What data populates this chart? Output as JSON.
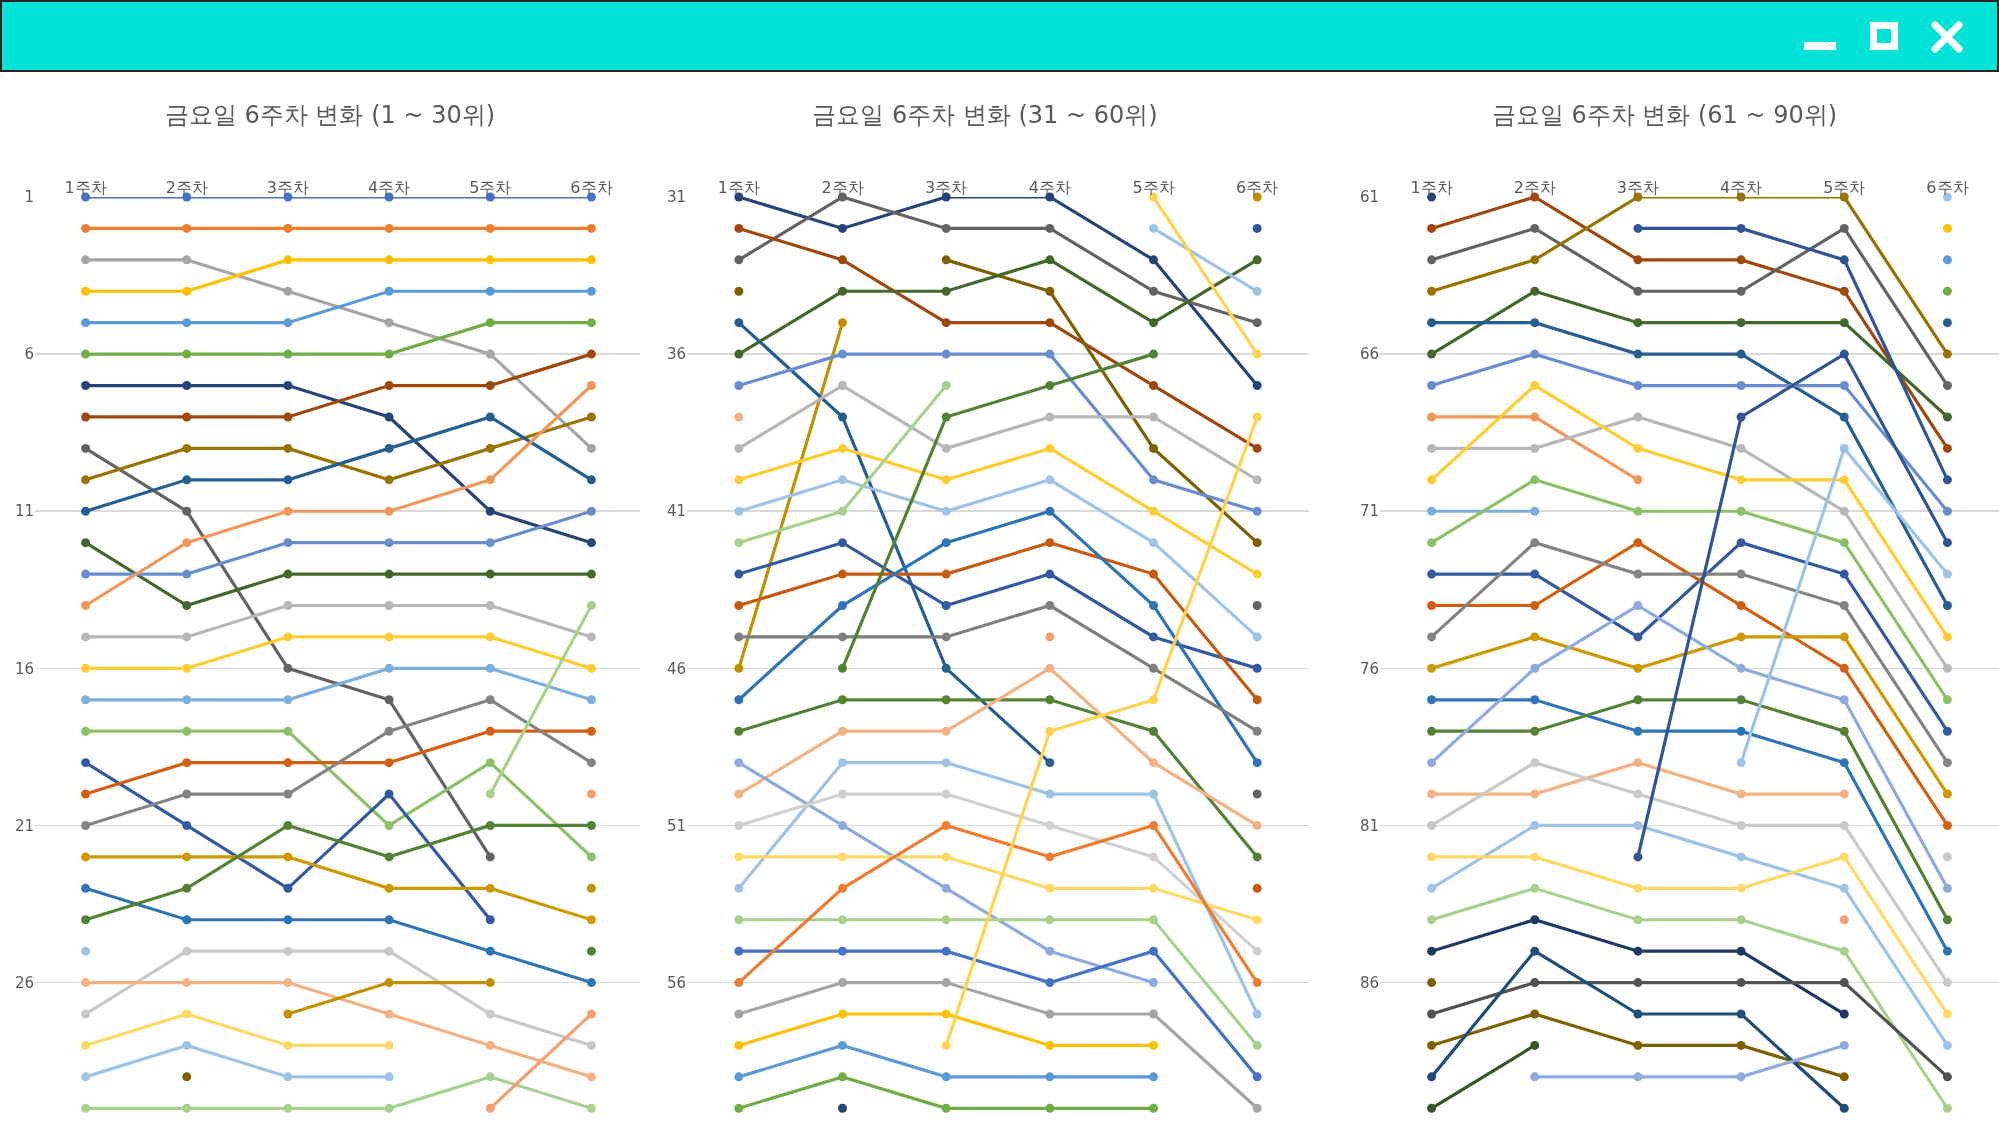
{
  "chart_data": [
    {
      "type": "line",
      "title": "금요일 6주차 변화 (1 ~ 30위)",
      "categories": [
        "1주차",
        "2주차",
        "3주차",
        "4주차",
        "5주차",
        "6주차"
      ],
      "ylim": [
        30.5,
        1
      ],
      "yticks": [
        1,
        6,
        11,
        16,
        21,
        26
      ],
      "grid": "y",
      "marker": "circle",
      "line_style": "solid",
      "series": [
        {
          "color": "#4472c4",
          "values": [
            1,
            1,
            1,
            1,
            1,
            1
          ]
        },
        {
          "color": "#ed7d31",
          "values": [
            2,
            2,
            2,
            2,
            2,
            2
          ]
        },
        {
          "color": "#a5a5a5",
          "values": [
            3,
            3,
            4,
            5,
            6,
            9
          ]
        },
        {
          "color": "#ffc000",
          "values": [
            4,
            4,
            3,
            3,
            3,
            3
          ]
        },
        {
          "color": "#5b9bd5",
          "values": [
            5,
            5,
            5,
            4,
            4,
            4
          ]
        },
        {
          "color": "#70ad47",
          "values": [
            6,
            6,
            6,
            6,
            5,
            5
          ]
        },
        {
          "color": "#264478",
          "values": [
            7,
            7,
            7,
            8,
            11,
            12
          ]
        },
        {
          "color": "#9e480e",
          "values": [
            8,
            8,
            8,
            7,
            7,
            6
          ]
        },
        {
          "color": "#636363",
          "values": [
            9,
            11,
            16,
            17,
            22,
            null
          ]
        },
        {
          "color": "#997300",
          "values": [
            10,
            9,
            9,
            10,
            9,
            8
          ]
        },
        {
          "color": "#255e91",
          "values": [
            11,
            10,
            10,
            9,
            8,
            10
          ]
        },
        {
          "color": "#43682b",
          "values": [
            12,
            14,
            13,
            13,
            13,
            13
          ]
        },
        {
          "color": "#698ed0",
          "values": [
            13,
            13,
            12,
            12,
            12,
            11
          ]
        },
        {
          "color": "#f1975a",
          "values": [
            14,
            12,
            11,
            11,
            10,
            7
          ]
        },
        {
          "color": "#b7b7b7",
          "values": [
            15,
            15,
            14,
            14,
            14,
            15
          ]
        },
        {
          "color": "#ffcd33",
          "values": [
            16,
            16,
            15,
            15,
            15,
            16
          ]
        },
        {
          "color": "#7cafdd",
          "values": [
            17,
            17,
            17,
            16,
            16,
            17
          ]
        },
        {
          "color": "#8cc168",
          "values": [
            18,
            18,
            18,
            21,
            19,
            22
          ]
        },
        {
          "color": "#335aa1",
          "values": [
            19,
            21,
            23,
            20,
            24,
            null
          ]
        },
        {
          "color": "#d26012",
          "values": [
            20,
            19,
            19,
            19,
            18,
            18
          ]
        },
        {
          "color": "#848484",
          "values": [
            21,
            20,
            20,
            18,
            17,
            19
          ]
        },
        {
          "color": "#cc9a00",
          "values": [
            22,
            22,
            22,
            23,
            23,
            24
          ]
        },
        {
          "color": "#2e75b6",
          "values": [
            23,
            24,
            24,
            24,
            25,
            26
          ]
        },
        {
          "color": "#548235",
          "values": [
            24,
            23,
            21,
            22,
            21,
            21
          ]
        },
        {
          "color": "#9dc3e6",
          "values": [
            25,
            null,
            null,
            null,
            null,
            null
          ]
        },
        {
          "color": "#c9c9c9",
          "values": [
            27,
            25,
            25,
            25,
            27,
            28
          ]
        },
        {
          "color": "#f4b183",
          "values": [
            26,
            26,
            26,
            27,
            28,
            29
          ]
        },
        {
          "color": "#ffd966",
          "values": [
            28,
            27,
            28,
            28,
            null,
            null
          ]
        },
        {
          "color": "#9dc3e6",
          "values": [
            29,
            28,
            29,
            29,
            null,
            null
          ]
        },
        {
          "color": "#a9d18e",
          "values": [
            30,
            30,
            30,
            30,
            29,
            30
          ]
        },
        {
          "color": "#7f6000",
          "values": [
            null,
            29,
            null,
            null,
            null,
            null
          ]
        },
        {
          "color": "#bf9000",
          "values": [
            null,
            null,
            27,
            26,
            26,
            null
          ]
        },
        {
          "color": "#f4a070",
          "values": [
            null,
            null,
            null,
            null,
            30,
            27
          ]
        },
        {
          "color": "#f4a070",
          "values": [
            null,
            null,
            null,
            null,
            null,
            20
          ]
        },
        {
          "color": "#bf9000",
          "values": [
            null,
            null,
            null,
            null,
            null,
            23
          ]
        },
        {
          "color": "#548235",
          "values": [
            null,
            null,
            null,
            null,
            null,
            25
          ]
        },
        {
          "color": "#a9d18e",
          "values": [
            null,
            null,
            null,
            null,
            20,
            14
          ]
        }
      ]
    },
    {
      "type": "line",
      "title": "금요일 6주차 변화 (31 ~ 60위)",
      "categories": [
        "1주차",
        "2주차",
        "3주차",
        "4주차",
        "5주차",
        "6주차"
      ],
      "ylim": [
        60.5,
        31
      ],
      "yticks": [
        31,
        36,
        41,
        46,
        51,
        56
      ],
      "grid": "y",
      "marker": "circle",
      "line_style": "solid",
      "series": [
        {
          "color": "#264478",
          "values": [
            31,
            32,
            31,
            31,
            33,
            37
          ]
        },
        {
          "color": "#636363",
          "values": [
            33,
            31,
            32,
            32,
            34,
            35
          ]
        },
        {
          "color": "#9e480e",
          "values": [
            32,
            33,
            35,
            35,
            37,
            39
          ]
        },
        {
          "color": "#7f6000",
          "values": [
            34,
            null,
            33,
            34,
            39,
            42
          ]
        },
        {
          "color": "#bf9000",
          "values": [
            46,
            35,
            null,
            null,
            null,
            null
          ]
        },
        {
          "color": "#bf9000",
          "values": [
            null,
            null,
            null,
            null,
            null,
            31
          ]
        },
        {
          "color": "#43682b",
          "values": [
            36,
            34,
            34,
            33,
            35,
            33
          ]
        },
        {
          "color": "#255e91",
          "values": [
            35,
            38,
            46,
            49,
            null,
            null
          ]
        },
        {
          "color": "#698ed0",
          "values": [
            37,
            36,
            36,
            36,
            40,
            41
          ]
        },
        {
          "color": "#f4b183",
          "values": [
            38,
            null,
            null,
            null,
            null,
            null
          ]
        },
        {
          "color": "#b7b7b7",
          "values": [
            39,
            37,
            39,
            38,
            38,
            40
          ]
        },
        {
          "color": "#ffcd33",
          "values": [
            40,
            39,
            40,
            39,
            41,
            43
          ]
        },
        {
          "color": "#9dc3e6",
          "values": [
            41,
            40,
            41,
            40,
            42,
            45
          ]
        },
        {
          "color": "#a9d18e",
          "values": [
            42,
            41,
            37,
            null,
            null,
            null
          ]
        },
        {
          "color": "#335aa1",
          "values": [
            43,
            42,
            44,
            43,
            45,
            46
          ]
        },
        {
          "color": "#c55a11",
          "values": [
            44,
            43,
            43,
            42,
            43,
            47
          ]
        },
        {
          "color": "#2e75b6",
          "values": [
            47,
            44,
            42,
            41,
            44,
            49
          ]
        },
        {
          "color": "#7f7f7f",
          "values": [
            45,
            45,
            45,
            44,
            46,
            48
          ]
        },
        {
          "color": "#548235",
          "values": [
            null,
            46,
            38,
            37,
            36,
            null
          ]
        },
        {
          "color": "#548235",
          "values": [
            48,
            47,
            47,
            47,
            48,
            52
          ]
        },
        {
          "color": "#f4b183",
          "values": [
            50,
            48,
            48,
            46,
            49,
            51
          ]
        },
        {
          "color": "#8faadc",
          "values": [
            49,
            51,
            53,
            55,
            56,
            null
          ]
        },
        {
          "color": "#9dc3e6",
          "values": [
            53,
            49,
            49,
            50,
            50,
            57
          ]
        },
        {
          "color": "#d0d0d0",
          "values": [
            51,
            50,
            50,
            51,
            52,
            55
          ]
        },
        {
          "color": "#ffd966",
          "values": [
            52,
            52,
            52,
            53,
            53,
            54
          ]
        },
        {
          "color": "#a9d18e",
          "values": [
            54,
            54,
            54,
            54,
            54,
            58
          ]
        },
        {
          "color": "#4472c4",
          "values": [
            55,
            55,
            55,
            56,
            55,
            59
          ]
        },
        {
          "color": "#ed7d31",
          "values": [
            56,
            53,
            51,
            52,
            51,
            56
          ]
        },
        {
          "color": "#a5a5a5",
          "values": [
            57,
            56,
            56,
            57,
            57,
            60
          ]
        },
        {
          "color": "#ffc000",
          "values": [
            58,
            57,
            57,
            58,
            58,
            null
          ]
        },
        {
          "color": "#5b9bd5",
          "values": [
            59,
            58,
            59,
            59,
            59,
            null
          ]
        },
        {
          "color": "#70ad47",
          "values": [
            60,
            59,
            60,
            60,
            60,
            null
          ]
        },
        {
          "color": "#264478",
          "values": [
            null,
            60,
            null,
            null,
            null,
            null
          ]
        },
        {
          "color": "#ffd34f",
          "values": [
            null,
            null,
            58,
            48,
            47,
            38
          ]
        },
        {
          "color": "#f4a070",
          "values": [
            null,
            null,
            null,
            45,
            null,
            null
          ]
        },
        {
          "color": "#9dc3e6",
          "values": [
            null,
            null,
            null,
            null,
            32,
            34
          ]
        },
        {
          "color": "#ffd34f",
          "values": [
            null,
            null,
            null,
            null,
            31,
            36
          ]
        },
        {
          "color": "#636363",
          "values": [
            null,
            null,
            null,
            null,
            null,
            44
          ]
        },
        {
          "color": "#2f5597",
          "values": [
            null,
            null,
            null,
            null,
            null,
            32
          ]
        },
        {
          "color": "#c55a11",
          "values": [
            null,
            null,
            null,
            null,
            null,
            53
          ]
        },
        {
          "color": "#636363",
          "values": [
            null,
            null,
            null,
            null,
            null,
            50
          ]
        }
      ]
    },
    {
      "type": "line",
      "title": "금요일 6주차 변화 (61 ~ 90위)",
      "categories": [
        "1주차",
        "2주차",
        "3주차",
        "4주차",
        "5주차",
        "6주차"
      ],
      "ylim": [
        90.5,
        61
      ],
      "yticks": [
        61,
        66,
        71,
        76,
        81,
        86
      ],
      "grid": "y",
      "marker": "circle",
      "line_style": "solid",
      "series": [
        {
          "color": "#264478",
          "values": [
            61,
            null,
            null,
            null,
            null,
            null
          ]
        },
        {
          "color": "#9e480e",
          "values": [
            62,
            61,
            63,
            63,
            64,
            69
          ]
        },
        {
          "color": "#636363",
          "values": [
            63,
            62,
            64,
            64,
            62,
            67
          ]
        },
        {
          "color": "#997300",
          "values": [
            64,
            63,
            61,
            61,
            61,
            66
          ]
        },
        {
          "color": "#43682b",
          "values": [
            66,
            64,
            65,
            65,
            65,
            68
          ]
        },
        {
          "color": "#255e91",
          "values": [
            65,
            65,
            66,
            66,
            68,
            74
          ]
        },
        {
          "color": "#2f5597",
          "values": [
            null,
            null,
            62,
            62,
            63,
            70
          ]
        },
        {
          "color": "#698ed0",
          "values": [
            67,
            66,
            67,
            67,
            67,
            71
          ]
        },
        {
          "color": "#f1975a",
          "values": [
            68,
            68,
            70,
            null,
            null,
            null
          ]
        },
        {
          "color": "#b7b7b7",
          "values": [
            69,
            69,
            68,
            69,
            71,
            76
          ]
        },
        {
          "color": "#ffcd33",
          "values": [
            70,
            67,
            69,
            70,
            70,
            75
          ]
        },
        {
          "color": "#7cafdd",
          "values": [
            71,
            71,
            null,
            null,
            null,
            null
          ]
        },
        {
          "color": "#8cc168",
          "values": [
            72,
            70,
            71,
            71,
            72,
            77
          ]
        },
        {
          "color": "#335aa1",
          "values": [
            73,
            73,
            75,
            72,
            73,
            78
          ]
        },
        {
          "color": "#d26012",
          "values": [
            74,
            74,
            72,
            74,
            76,
            81
          ]
        },
        {
          "color": "#848484",
          "values": [
            75,
            72,
            73,
            73,
            74,
            79
          ]
        },
        {
          "color": "#cc9a00",
          "values": [
            76,
            75,
            76,
            75,
            75,
            80
          ]
        },
        {
          "color": "#2e75b6",
          "values": [
            77,
            77,
            78,
            78,
            79,
            85
          ]
        },
        {
          "color": "#548235",
          "values": [
            78,
            78,
            77,
            77,
            78,
            84
          ]
        },
        {
          "color": "#8faadc",
          "values": [
            79,
            76,
            74,
            76,
            77,
            83
          ]
        },
        {
          "color": "#f4b183",
          "values": [
            80,
            80,
            79,
            80,
            80,
            null
          ]
        },
        {
          "color": "#f4a070",
          "values": [
            null,
            null,
            null,
            null,
            84,
            null
          ]
        },
        {
          "color": "#c9c9c9",
          "values": [
            81,
            79,
            80,
            81,
            81,
            86
          ]
        },
        {
          "color": "#9dc3e6",
          "values": [
            83,
            81,
            81,
            82,
            83,
            88
          ]
        },
        {
          "color": "#ffd966",
          "values": [
            82,
            82,
            83,
            83,
            82,
            87
          ]
        },
        {
          "color": "#a9d18e",
          "values": [
            84,
            83,
            84,
            84,
            85,
            90
          ]
        },
        {
          "color": "#203864",
          "values": [
            85,
            84,
            85,
            85,
            87,
            null
          ]
        },
        {
          "color": "#7f6000",
          "values": [
            86,
            null,
            null,
            null,
            null,
            null
          ]
        },
        {
          "color": "#525252",
          "values": [
            87,
            86,
            86,
            86,
            86,
            89
          ]
        },
        {
          "color": "#7f6000",
          "values": [
            88,
            87,
            88,
            88,
            89,
            null
          ]
        },
        {
          "color": "#1f4e79",
          "values": [
            89,
            85,
            87,
            87,
            90,
            null
          ]
        },
        {
          "color": "#375623",
          "values": [
            90,
            88,
            null,
            null,
            null,
            null
          ]
        },
        {
          "color": "#8faadc",
          "values": [
            null,
            89,
            89,
            89,
            88,
            null
          ]
        },
        {
          "color": "#2f5597",
          "values": [
            null,
            null,
            82,
            68,
            66,
            72
          ]
        },
        {
          "color": "#9dc3e6",
          "values": [
            null,
            null,
            null,
            79,
            69,
            73
          ]
        },
        {
          "color": "#9dc3e6",
          "values": [
            null,
            null,
            null,
            null,
            null,
            61
          ]
        },
        {
          "color": "#ffc000",
          "values": [
            null,
            null,
            null,
            null,
            null,
            62
          ]
        },
        {
          "color": "#5b9bd5",
          "values": [
            null,
            null,
            null,
            null,
            null,
            63
          ]
        },
        {
          "color": "#70ad47",
          "values": [
            null,
            null,
            null,
            null,
            null,
            64
          ]
        },
        {
          "color": "#255e91",
          "values": [
            null,
            null,
            null,
            null,
            null,
            65
          ]
        },
        {
          "color": "#c9c9c9",
          "values": [
            null,
            null,
            null,
            null,
            null,
            82
          ]
        }
      ]
    }
  ]
}
